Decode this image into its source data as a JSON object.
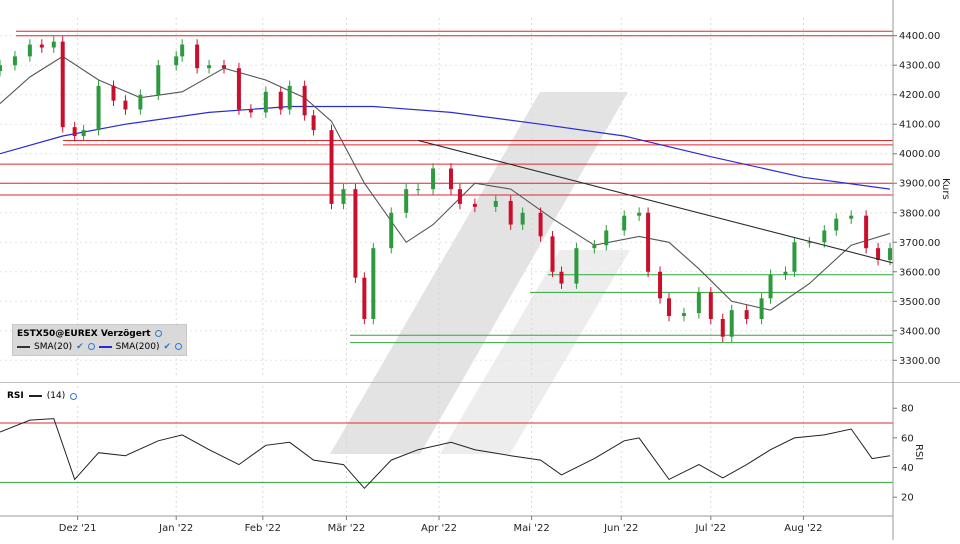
{
  "chart_data": {
    "type": "candlestick",
    "instrument": "ESTX50@EUREX Verzögert",
    "ylabel": "Kurs",
    "ylim": [
      3240,
      4460
    ],
    "yticks": [
      "4400.00",
      "4300.00",
      "4200.00",
      "4100.00",
      "4000.00",
      "3900.00",
      "3800.00",
      "3700.00",
      "3600.00",
      "3500.00",
      "3400.00",
      "3300.00"
    ],
    "ytick_values": [
      4400,
      4300,
      4200,
      4100,
      4000,
      3900,
      3800,
      3700,
      3600,
      3500,
      3400,
      3300
    ],
    "x_tick_labels": [
      "Dez '21",
      "Jan '22",
      "Feb '22",
      "Mär '22",
      "Apr '22",
      "Mai '22",
      "Jun '22",
      "Jul '22",
      "Aug '22"
    ],
    "x_tick_dates": [
      "2021-12-01",
      "2022-01-03",
      "2022-02-01",
      "2022-03-01",
      "2022-04-01",
      "2022-05-02",
      "2022-06-01",
      "2022-07-01",
      "2022-08-01"
    ],
    "x_range": [
      "2021-11-05",
      "2022-08-31"
    ],
    "close_series": [
      {
        "date": "2021-11-05",
        "close": 4300
      },
      {
        "date": "2021-11-10",
        "close": 4330
      },
      {
        "date": "2021-11-15",
        "close": 4370
      },
      {
        "date": "2021-11-19",
        "close": 4360
      },
      {
        "date": "2021-11-23",
        "close": 4380
      },
      {
        "date": "2021-11-26",
        "close": 4090
      },
      {
        "date": "2021-11-30",
        "close": 4060
      },
      {
        "date": "2021-12-03",
        "close": 4080
      },
      {
        "date": "2021-12-08",
        "close": 4230
      },
      {
        "date": "2021-12-13",
        "close": 4180
      },
      {
        "date": "2021-12-17",
        "close": 4150
      },
      {
        "date": "2021-12-22",
        "close": 4200
      },
      {
        "date": "2021-12-28",
        "close": 4300
      },
      {
        "date": "2022-01-03",
        "close": 4330
      },
      {
        "date": "2022-01-05",
        "close": 4370
      },
      {
        "date": "2022-01-10",
        "close": 4290
      },
      {
        "date": "2022-01-14",
        "close": 4300
      },
      {
        "date": "2022-01-19",
        "close": 4290
      },
      {
        "date": "2022-01-24",
        "close": 4150
      },
      {
        "date": "2022-01-28",
        "close": 4140
      },
      {
        "date": "2022-02-02",
        "close": 4210
      },
      {
        "date": "2022-02-07",
        "close": 4150
      },
      {
        "date": "2022-02-10",
        "close": 4230
      },
      {
        "date": "2022-02-15",
        "close": 4130
      },
      {
        "date": "2022-02-18",
        "close": 4080
      },
      {
        "date": "2022-02-24",
        "close": 3830
      },
      {
        "date": "2022-02-28",
        "close": 3880
      },
      {
        "date": "2022-03-04",
        "close": 3580
      },
      {
        "date": "2022-03-07",
        "close": 3440
      },
      {
        "date": "2022-03-10",
        "close": 3680
      },
      {
        "date": "2022-03-16",
        "close": 3800
      },
      {
        "date": "2022-03-21",
        "close": 3880
      },
      {
        "date": "2022-03-25",
        "close": 3880
      },
      {
        "date": "2022-03-30",
        "close": 3950
      },
      {
        "date": "2022-04-05",
        "close": 3880
      },
      {
        "date": "2022-04-08",
        "close": 3830
      },
      {
        "date": "2022-04-13",
        "close": 3820
      },
      {
        "date": "2022-04-20",
        "close": 3840
      },
      {
        "date": "2022-04-25",
        "close": 3760
      },
      {
        "date": "2022-04-29",
        "close": 3800
      },
      {
        "date": "2022-05-05",
        "close": 3720
      },
      {
        "date": "2022-05-09",
        "close": 3600
      },
      {
        "date": "2022-05-12",
        "close": 3560
      },
      {
        "date": "2022-05-17",
        "close": 3680
      },
      {
        "date": "2022-05-23",
        "close": 3690
      },
      {
        "date": "2022-05-27",
        "close": 3740
      },
      {
        "date": "2022-06-02",
        "close": 3790
      },
      {
        "date": "2022-06-07",
        "close": 3800
      },
      {
        "date": "2022-06-10",
        "close": 3600
      },
      {
        "date": "2022-06-14",
        "close": 3510
      },
      {
        "date": "2022-06-17",
        "close": 3450
      },
      {
        "date": "2022-06-22",
        "close": 3460
      },
      {
        "date": "2022-06-27",
        "close": 3530
      },
      {
        "date": "2022-07-01",
        "close": 3440
      },
      {
        "date": "2022-07-05",
        "close": 3380
      },
      {
        "date": "2022-07-08",
        "close": 3470
      },
      {
        "date": "2022-07-13",
        "close": 3440
      },
      {
        "date": "2022-07-18",
        "close": 3510
      },
      {
        "date": "2022-07-21",
        "close": 3590
      },
      {
        "date": "2022-07-26",
        "close": 3600
      },
      {
        "date": "2022-07-29",
        "close": 3700
      },
      {
        "date": "2022-08-03",
        "close": 3700
      },
      {
        "date": "2022-08-08",
        "close": 3740
      },
      {
        "date": "2022-08-12",
        "close": 3780
      },
      {
        "date": "2022-08-17",
        "close": 3790
      },
      {
        "date": "2022-08-22",
        "close": 3680
      },
      {
        "date": "2022-08-26",
        "close": 3640
      },
      {
        "date": "2022-08-30",
        "close": 3680
      }
    ],
    "sma20": [
      {
        "date": "2021-11-05",
        "value": 4170
      },
      {
        "date": "2021-11-15",
        "value": 4260
      },
      {
        "date": "2021-11-26",
        "value": 4330
      },
      {
        "date": "2021-12-08",
        "value": 4250
      },
      {
        "date": "2021-12-22",
        "value": 4190
      },
      {
        "date": "2022-01-05",
        "value": 4210
      },
      {
        "date": "2022-01-19",
        "value": 4290
      },
      {
        "date": "2022-02-02",
        "value": 4250
      },
      {
        "date": "2022-02-15",
        "value": 4190
      },
      {
        "date": "2022-02-24",
        "value": 4110
      },
      {
        "date": "2022-03-07",
        "value": 3900
      },
      {
        "date": "2022-03-21",
        "value": 3700
      },
      {
        "date": "2022-03-30",
        "value": 3760
      },
      {
        "date": "2022-04-13",
        "value": 3900
      },
      {
        "date": "2022-04-25",
        "value": 3880
      },
      {
        "date": "2022-05-09",
        "value": 3780
      },
      {
        "date": "2022-05-23",
        "value": 3690
      },
      {
        "date": "2022-06-07",
        "value": 3720
      },
      {
        "date": "2022-06-17",
        "value": 3700
      },
      {
        "date": "2022-06-27",
        "value": 3610
      },
      {
        "date": "2022-07-08",
        "value": 3500
      },
      {
        "date": "2022-07-21",
        "value": 3470
      },
      {
        "date": "2022-08-03",
        "value": 3560
      },
      {
        "date": "2022-08-17",
        "value": 3690
      },
      {
        "date": "2022-08-30",
        "value": 3730
      }
    ],
    "sma200": [
      {
        "date": "2021-11-05",
        "value": 4000
      },
      {
        "date": "2021-11-26",
        "value": 4060
      },
      {
        "date": "2021-12-17",
        "value": 4100
      },
      {
        "date": "2022-01-14",
        "value": 4140
      },
      {
        "date": "2022-02-10",
        "value": 4160
      },
      {
        "date": "2022-03-10",
        "value": 4160
      },
      {
        "date": "2022-04-05",
        "value": 4140
      },
      {
        "date": "2022-05-05",
        "value": 4100
      },
      {
        "date": "2022-06-02",
        "value": 4060
      },
      {
        "date": "2022-07-01",
        "value": 3990
      },
      {
        "date": "2022-08-01",
        "value": 3920
      },
      {
        "date": "2022-08-30",
        "value": 3880
      }
    ],
    "resistance_levels": [
      4415,
      4400,
      4045,
      4030,
      3965,
      3900,
      3860
    ],
    "support_levels": [
      3590,
      3530,
      3385,
      3360
    ],
    "trendline": [
      {
        "date": "2022-03-25",
        "value": 4045
      },
      {
        "date": "2022-08-31",
        "value": 3630
      }
    ],
    "rsi": {
      "name": "RSI",
      "period": "(14)",
      "ylim": [
        10,
        95
      ],
      "yticks": [
        "80",
        "60",
        "40",
        "20"
      ],
      "ytick_values": [
        80,
        60,
        40,
        20
      ],
      "levels": [
        70,
        30
      ],
      "values": [
        {
          "date": "2021-11-05",
          "value": 64
        },
        {
          "date": "2021-11-15",
          "value": 72
        },
        {
          "date": "2021-11-23",
          "value": 73
        },
        {
          "date": "2021-11-30",
          "value": 32
        },
        {
          "date": "2021-12-08",
          "value": 50
        },
        {
          "date": "2021-12-17",
          "value": 48
        },
        {
          "date": "2021-12-28",
          "value": 58
        },
        {
          "date": "2022-01-05",
          "value": 62
        },
        {
          "date": "2022-01-14",
          "value": 52
        },
        {
          "date": "2022-01-24",
          "value": 42
        },
        {
          "date": "2022-02-02",
          "value": 55
        },
        {
          "date": "2022-02-10",
          "value": 57
        },
        {
          "date": "2022-02-18",
          "value": 45
        },
        {
          "date": "2022-02-28",
          "value": 42
        },
        {
          "date": "2022-03-07",
          "value": 26
        },
        {
          "date": "2022-03-16",
          "value": 45
        },
        {
          "date": "2022-03-25",
          "value": 52
        },
        {
          "date": "2022-04-05",
          "value": 57
        },
        {
          "date": "2022-04-13",
          "value": 52
        },
        {
          "date": "2022-04-25",
          "value": 48
        },
        {
          "date": "2022-05-05",
          "value": 45
        },
        {
          "date": "2022-05-12",
          "value": 35
        },
        {
          "date": "2022-05-23",
          "value": 46
        },
        {
          "date": "2022-06-02",
          "value": 58
        },
        {
          "date": "2022-06-07",
          "value": 60
        },
        {
          "date": "2022-06-17",
          "value": 32
        },
        {
          "date": "2022-06-27",
          "value": 42
        },
        {
          "date": "2022-07-05",
          "value": 33
        },
        {
          "date": "2022-07-13",
          "value": 42
        },
        {
          "date": "2022-07-21",
          "value": 52
        },
        {
          "date": "2022-07-29",
          "value": 60
        },
        {
          "date": "2022-08-08",
          "value": 62
        },
        {
          "date": "2022-08-17",
          "value": 66
        },
        {
          "date": "2022-08-24",
          "value": 46
        },
        {
          "date": "2022-08-30",
          "value": 48
        }
      ]
    },
    "series": [
      {
        "name": "SMA(20)",
        "color": "#555555"
      },
      {
        "name": "SMA(200)",
        "color": "#2b2bd6"
      }
    ],
    "colors": {
      "up": "#2e9a3e",
      "down": "#c8102e",
      "resistance": "#e0262e",
      "support": "#2fa83a",
      "trendline": "#2b2b2b",
      "watermark": "#e3e3e3"
    }
  }
}
